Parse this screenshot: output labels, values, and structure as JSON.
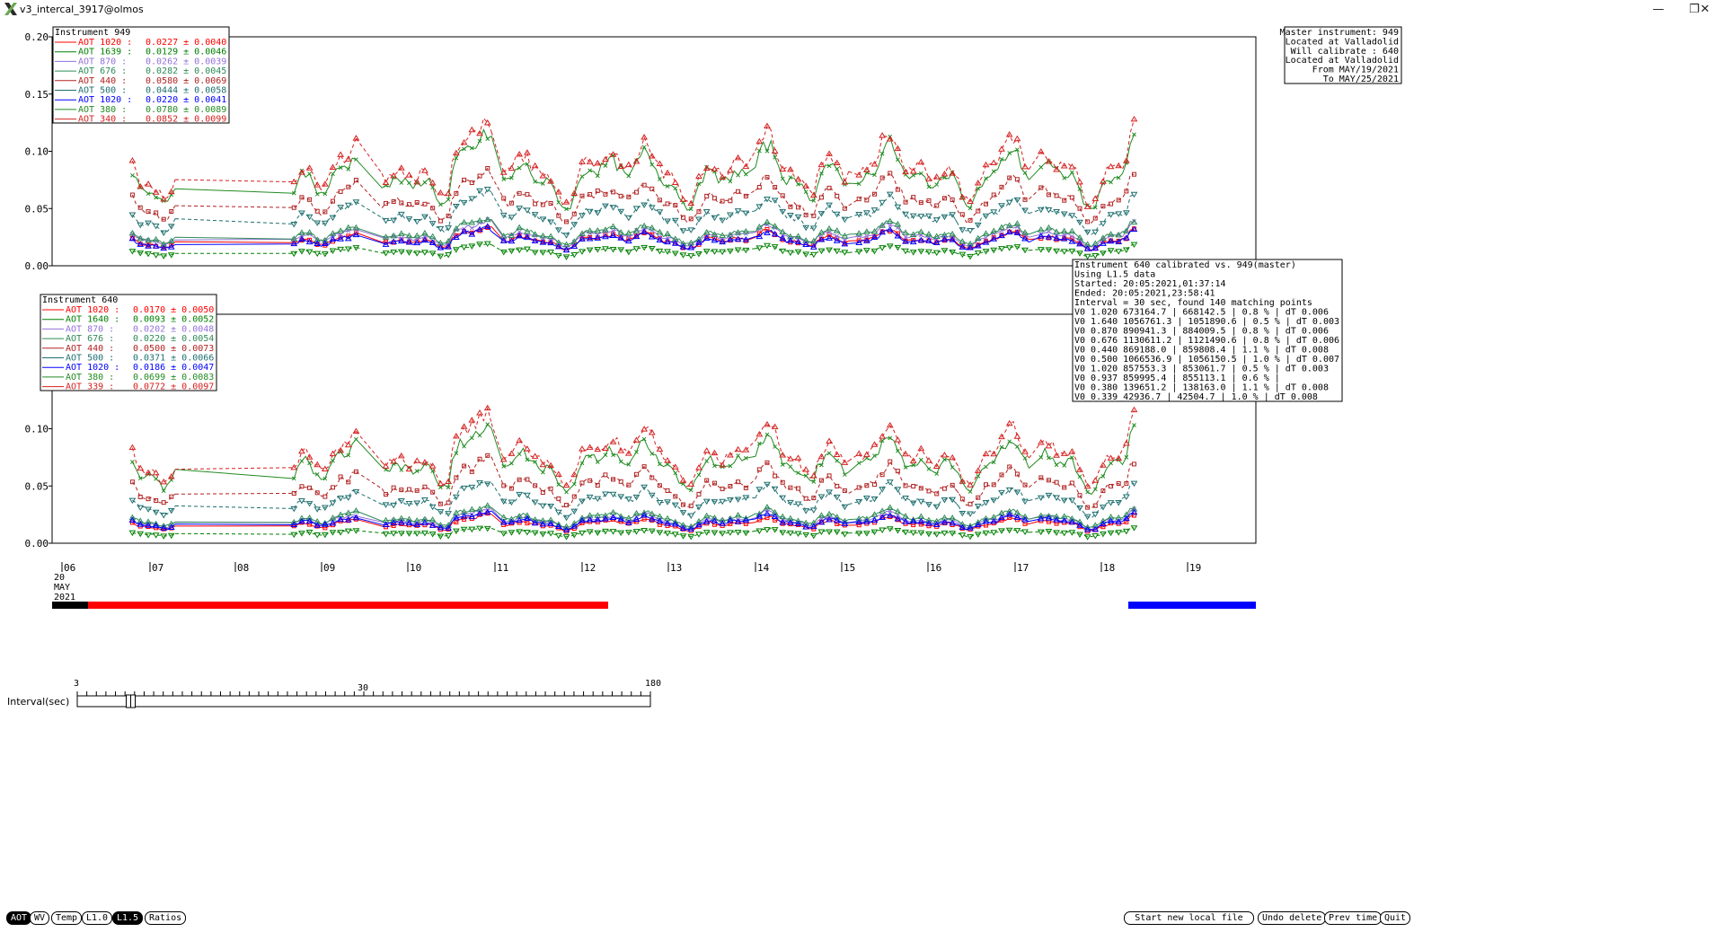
{
  "window": {
    "title": "v3_intercal_3917@olmos",
    "minimize_icon": "minimize-icon",
    "maximize_icon": "restore-icon",
    "close_icon": "close-icon"
  },
  "info_box": {
    "lines": [
      "Master instrument: 949",
      " Located at Valladolid",
      "Will calibrate   : 640",
      " Located at Valladolid",
      "From MAY/19/2021",
      "To MAY/25/2021"
    ]
  },
  "calibration_box": {
    "lines": [
      "Instrument 640 calibrated vs. 949(master)",
      "Using L1.5 data",
      "Started: 20:05:2021,01:37:14",
      "Ended: 20:05:2021,23:58:41",
      "Interval = 30 sec, found 140 matching points",
      "V0 1.020  673164.7 | 668142.5 |  0.8 % | dT 0.006",
      "V0 1.640  1056761.3 | 1051890.6 |  0.5 % | dT 0.003",
      "V0 0.870  890941.3 | 884009.5 |  0.8 % | dT 0.006",
      "V0 0.676  1130611.2 | 1121490.6 |  0.8 % | dT 0.006",
      "V0 0.440  869188.0 | 859808.4 |  1.1 % | dT 0.008",
      "V0 0.500  1066536.9 | 1056150.5 |  1.0 % | dT 0.007",
      "V0 1.020  857553.3 | 853061.7 |  0.5 % | dT 0.003",
      "V0 0.937  859995.4 | 855113.1 |  0.6 % |",
      "V0 0.380  139651.2 | 138163.0 |  1.1 % | dT 0.008",
      "V0 0.339  42936.7 | 42504.7 |  1.0 % | dT 0.008"
    ]
  },
  "timeline": {
    "x_ticks": [
      "06",
      "07",
      "08",
      "09",
      "10",
      "11",
      "12",
      "13",
      "14",
      "15",
      "16",
      "17",
      "18",
      "19"
    ],
    "date_label": [
      "20",
      "MAY",
      "2021"
    ],
    "bar_colors": {
      "dark": "#000000",
      "selected": "#ff0000",
      "other": "#0000ff"
    }
  },
  "slider": {
    "label": "Interval(sec)",
    "min_label": "3",
    "mid_label": "30",
    "max_label": "180",
    "value": 30
  },
  "buttons_left": [
    {
      "label": "AOT",
      "active": true
    },
    {
      "label": "WV",
      "active": false
    },
    {
      "label": "Temp",
      "active": false
    },
    {
      "label": "L1.0",
      "active": false
    },
    {
      "label": "L1.5",
      "active": true
    },
    {
      "label": "Ratios",
      "active": false
    }
  ],
  "buttons_right": [
    {
      "label": "Start new local file"
    },
    {
      "label": "Undo delete"
    },
    {
      "label": "Prev time"
    },
    {
      "label": "Quit"
    }
  ],
  "chart_data": [
    {
      "type": "line",
      "title": "Instrument 949",
      "ylim": [
        0,
        0.2
      ],
      "y_ticks": [
        "0.00",
        "0.05",
        "0.10",
        "0.15",
        "0.20"
      ],
      "x_ticks": [
        "06",
        "07",
        "08",
        "09",
        "10",
        "11",
        "12",
        "13",
        "14",
        "15",
        "16",
        "17",
        "18",
        "19"
      ],
      "series": [
        {
          "name": "AOT 1020",
          "mean": "0.0227",
          "sd": "0.0040",
          "color": "#ff0000",
          "dash": "solid",
          "marker": "square",
          "base": 0.0227
        },
        {
          "name": "AOT 1639",
          "mean": "0.0129",
          "sd": "0.0046",
          "color": "#008000",
          "dash": "dashed",
          "marker": "tridown",
          "base": 0.0129
        },
        {
          "name": "AOT 870",
          "mean": "0.0262",
          "sd": "0.0039",
          "color": "#9370db",
          "dash": "solid",
          "marker": "cross",
          "base": 0.0262
        },
        {
          "name": "AOT 676",
          "mean": "0.0282",
          "sd": "0.0045",
          "color": "#2e8b57",
          "dash": "solid",
          "marker": "triangle",
          "base": 0.0282
        },
        {
          "name": "AOT 440",
          "mean": "0.0580",
          "sd": "0.0069",
          "color": "#b22222",
          "dash": "dashed",
          "marker": "square",
          "base": 0.058
        },
        {
          "name": "AOT 500",
          "mean": "0.0444",
          "sd": "0.0058",
          "color": "#1f6f6f",
          "dash": "dashed",
          "marker": "tridown",
          "base": 0.0444
        },
        {
          "name": "AOT 1020",
          "mean": "0.0220",
          "sd": "0.0041",
          "color": "#0000ff",
          "dash": "solid",
          "marker": "triangle",
          "base": 0.022
        },
        {
          "name": "AOT 380",
          "mean": "0.0780",
          "sd": "0.0089",
          "color": "#228b22",
          "dash": "solid",
          "marker": "cross",
          "base": 0.078
        },
        {
          "name": "AOT 340",
          "mean": "0.0852",
          "sd": "0.0099",
          "color": "#d62020",
          "dash": "dashed",
          "marker": "triangle",
          "base": 0.0852
        }
      ]
    },
    {
      "type": "line",
      "title": "Instrument 640",
      "ylim": [
        0,
        0.2
      ],
      "y_ticks": [
        "0.00",
        "0.05",
        "0.10"
      ],
      "x_ticks": [
        "06",
        "07",
        "08",
        "09",
        "10",
        "11",
        "12",
        "13",
        "14",
        "15",
        "16",
        "17",
        "18",
        "19"
      ],
      "series": [
        {
          "name": "AOT 1020",
          "mean": "0.0170",
          "sd": "0.0050",
          "color": "#ff0000",
          "dash": "solid",
          "marker": "square",
          "base": 0.017
        },
        {
          "name": "AOT 1640",
          "mean": "0.0093",
          "sd": "0.0052",
          "color": "#008000",
          "dash": "dashed",
          "marker": "tridown",
          "base": 0.0093
        },
        {
          "name": "AOT 870",
          "mean": "0.0202",
          "sd": "0.0048",
          "color": "#9370db",
          "dash": "solid",
          "marker": "cross",
          "base": 0.0202
        },
        {
          "name": "AOT 676",
          "mean": "0.0220",
          "sd": "0.0054",
          "color": "#2e8b57",
          "dash": "solid",
          "marker": "triangle",
          "base": 0.022
        },
        {
          "name": "AOT 440",
          "mean": "0.0500",
          "sd": "0.0073",
          "color": "#b22222",
          "dash": "dashed",
          "marker": "square",
          "base": 0.05
        },
        {
          "name": "AOT 500",
          "mean": "0.0371",
          "sd": "0.0066",
          "color": "#1f6f6f",
          "dash": "dashed",
          "marker": "tridown",
          "base": 0.0371
        },
        {
          "name": "AOT 1020",
          "mean": "0.0186",
          "sd": "0.0047",
          "color": "#0000ff",
          "dash": "solid",
          "marker": "triangle",
          "base": 0.0186
        },
        {
          "name": "AOT 380",
          "mean": "0.0699",
          "sd": "0.0083",
          "color": "#228b22",
          "dash": "solid",
          "marker": "cross",
          "base": 0.0699
        },
        {
          "name": "AOT 339",
          "mean": "0.0772",
          "sd": "0.0097",
          "color": "#d62020",
          "dash": "dashed",
          "marker": "triangle",
          "base": 0.0772
        }
      ]
    }
  ]
}
